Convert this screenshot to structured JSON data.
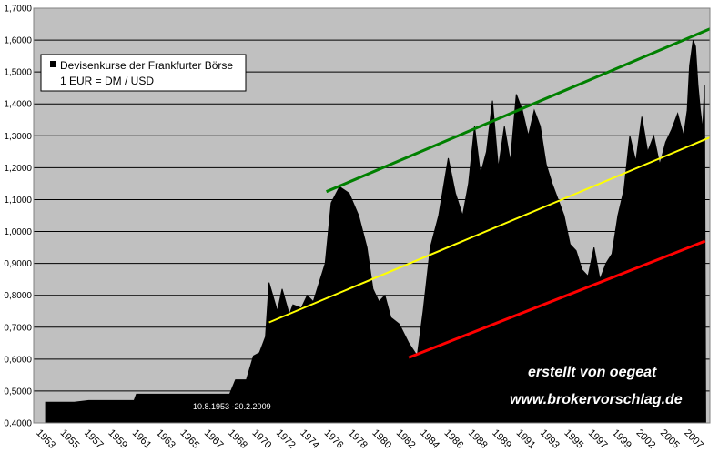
{
  "chart_data": {
    "type": "area",
    "title": "",
    "xlabel": "",
    "ylabel": "",
    "ylim": [
      0.4,
      1.7
    ],
    "xlim": [
      1952.6,
      2009.2
    ],
    "grid": true,
    "yticks": [
      "0,4000",
      "0,5000",
      "0,6000",
      "0,7000",
      "0,8000",
      "0,9000",
      "1,0000",
      "1,1000",
      "1,2000",
      "1,3000",
      "1,4000",
      "1,5000",
      "1,6000",
      "1,7000"
    ],
    "xticks": [
      "1953",
      "1955",
      "1957",
      "1959",
      "1961",
      "1963",
      "1965",
      "1967",
      "1968",
      "1970",
      "1972",
      "1974",
      "1976",
      "1978",
      "1980",
      "1982",
      "1984",
      "1986",
      "1988",
      "1989",
      "1991",
      "1993",
      "1995",
      "1997",
      "1999",
      "2002",
      "2005",
      "2007"
    ],
    "legend": {
      "position": "top-left",
      "entries": [
        "Devisenkurse der Frankfurter Börse",
        "1 EUR = DM / USD"
      ]
    },
    "annotations": {
      "date_range": "10.8.1953 -20.2.2009",
      "credit_line1": "erstellt von oegeat",
      "credit_line2": "www.brokervorschlag.de"
    },
    "series": [
      {
        "name": "Devisenkurse der Frankfurter Börse",
        "color": "#000000",
        "x": [
          1953.6,
          1956.0,
          1957.2,
          1961.0,
          1961.2,
          1969.0,
          1969.5,
          1970.4,
          1971.0,
          1971.5,
          1972.0,
          1972.3,
          1973.0,
          1973.4,
          1974.0,
          1974.3,
          1975.0,
          1975.5,
          1976.0,
          1977.0,
          1977.5,
          1978.2,
          1979.0,
          1979.8,
          1980.5,
          1981.0,
          1981.5,
          1982.0,
          1982.5,
          1983.2,
          1984.0,
          1984.7,
          1985.2,
          1985.8,
          1986.5,
          1987.3,
          1987.9,
          1988.5,
          1989.0,
          1989.5,
          1990.0,
          1990.5,
          1991.0,
          1991.5,
          1992.0,
          1992.5,
          1993.0,
          1993.5,
          1994.0,
          1994.5,
          1995.0,
          1995.5,
          1996.0,
          1996.5,
          1997.0,
          1997.5,
          1998.0,
          1998.5,
          1999.0,
          1999.5,
          2000.0,
          2000.5,
          2001.0,
          2001.5,
          2002.0,
          2002.5,
          2003.0,
          2003.5,
          2004.0,
          2004.5,
          2005.0,
          2005.5,
          2006.0,
          2006.5,
          2007.0,
          2007.3,
          2007.5,
          2007.8,
          2008.0,
          2008.2,
          2008.4,
          2008.6,
          2008.75,
          2008.85,
          2009.15
        ],
        "values": [
          0.465,
          0.465,
          0.47,
          0.47,
          0.49,
          0.49,
          0.535,
          0.535,
          0.61,
          0.62,
          0.67,
          0.84,
          0.75,
          0.82,
          0.74,
          0.77,
          0.76,
          0.8,
          0.78,
          0.9,
          1.09,
          1.14,
          1.12,
          1.05,
          0.95,
          0.82,
          0.78,
          0.8,
          0.73,
          0.71,
          0.65,
          0.61,
          0.75,
          0.95,
          1.05,
          1.23,
          1.12,
          1.05,
          1.15,
          1.33,
          1.18,
          1.25,
          1.41,
          1.2,
          1.33,
          1.22,
          1.43,
          1.38,
          1.3,
          1.38,
          1.33,
          1.21,
          1.15,
          1.1,
          1.05,
          0.96,
          0.94,
          0.88,
          0.86,
          0.95,
          0.85,
          0.9,
          0.93,
          1.05,
          1.13,
          1.3,
          1.22,
          1.36,
          1.25,
          1.3,
          1.21,
          1.28,
          1.32,
          1.37,
          1.3,
          1.38,
          1.52,
          1.6,
          1.58,
          1.46,
          1.38,
          1.32,
          1.46,
          0.4,
          0.4
        ]
      }
    ],
    "trend_lines": [
      {
        "color": "#008000",
        "x": [
          1977.1,
          2009.2
        ],
        "values": [
          1.125,
          1.635
        ]
      },
      {
        "color": "#ffff00",
        "x": [
          1972.3,
          2009.2
        ],
        "values": [
          0.715,
          1.295
        ]
      },
      {
        "color": "#ff0000",
        "x": [
          1984.0,
          2008.8
        ],
        "values": [
          0.605,
          0.97
        ]
      }
    ],
    "colors": {
      "plot_background": "#c0c0c0",
      "page_background": "#ffffff",
      "gridline": "#000000",
      "area_fill": "#000000"
    }
  }
}
